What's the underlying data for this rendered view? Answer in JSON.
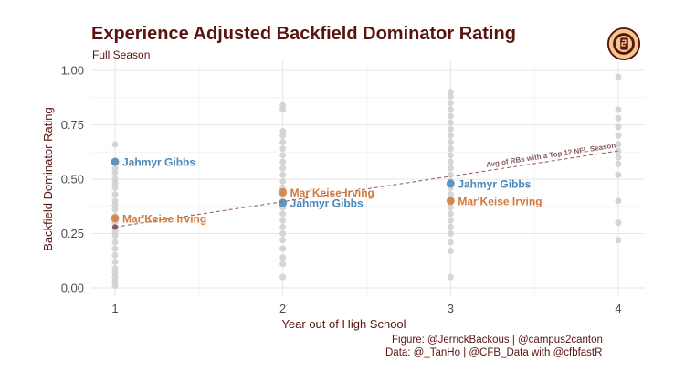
{
  "header": {
    "title": "Experience Adjusted Backfield Dominator Rating",
    "subtitle": "Full Season"
  },
  "credits": {
    "line1": "Figure: @JerrickBackous | @campus2canton",
    "line2": "Data: @_TanHo | @CFB_Data with @cfbfastR"
  },
  "colors": {
    "title": "#5a1410",
    "gibbs": "#4a86b8",
    "irving": "#d27a3b",
    "background_points": "#cfcfcf",
    "trend": "#8a5a5a",
    "logo_fill": "#f2c98a",
    "logo_ring": "#5a1410"
  },
  "logo_icon": "campus2canton-logo-icon",
  "chart_data": {
    "type": "scatter",
    "xlabel": "Year out of High School",
    "ylabel": "Backfield Dominator Rating",
    "xlim": [
      1,
      4
    ],
    "ylim": [
      0,
      1
    ],
    "x_ticks": [
      "1",
      "2",
      "3",
      "4"
    ],
    "y_ticks": [
      "0.00",
      "0.25",
      "0.50",
      "0.75",
      "1.00"
    ],
    "grid": true,
    "background_points": [
      {
        "x": 1,
        "y": 0.66
      },
      {
        "x": 1,
        "y": 0.58
      },
      {
        "x": 1,
        "y": 0.55
      },
      {
        "x": 1,
        "y": 0.53
      },
      {
        "x": 1,
        "y": 0.5
      },
      {
        "x": 1,
        "y": 0.48
      },
      {
        "x": 1,
        "y": 0.46
      },
      {
        "x": 1,
        "y": 0.43
      },
      {
        "x": 1,
        "y": 0.4
      },
      {
        "x": 1,
        "y": 0.38
      },
      {
        "x": 1,
        "y": 0.36
      },
      {
        "x": 1,
        "y": 0.33
      },
      {
        "x": 1,
        "y": 0.3
      },
      {
        "x": 1,
        "y": 0.28
      },
      {
        "x": 1,
        "y": 0.26
      },
      {
        "x": 1,
        "y": 0.24
      },
      {
        "x": 1,
        "y": 0.21
      },
      {
        "x": 1,
        "y": 0.18
      },
      {
        "x": 1,
        "y": 0.15
      },
      {
        "x": 1,
        "y": 0.12
      },
      {
        "x": 1,
        "y": 0.09
      },
      {
        "x": 1,
        "y": 0.07
      },
      {
        "x": 1,
        "y": 0.05
      },
      {
        "x": 1,
        "y": 0.03
      },
      {
        "x": 1,
        "y": 0.01
      },
      {
        "x": 2,
        "y": 0.84
      },
      {
        "x": 2,
        "y": 0.82
      },
      {
        "x": 2,
        "y": 0.72
      },
      {
        "x": 2,
        "y": 0.7
      },
      {
        "x": 2,
        "y": 0.67
      },
      {
        "x": 2,
        "y": 0.64
      },
      {
        "x": 2,
        "y": 0.61
      },
      {
        "x": 2,
        "y": 0.58
      },
      {
        "x": 2,
        "y": 0.55
      },
      {
        "x": 2,
        "y": 0.52
      },
      {
        "x": 2,
        "y": 0.49
      },
      {
        "x": 2,
        "y": 0.46
      },
      {
        "x": 2,
        "y": 0.43
      },
      {
        "x": 2,
        "y": 0.4
      },
      {
        "x": 2,
        "y": 0.37
      },
      {
        "x": 2,
        "y": 0.34
      },
      {
        "x": 2,
        "y": 0.31
      },
      {
        "x": 2,
        "y": 0.28
      },
      {
        "x": 2,
        "y": 0.25
      },
      {
        "x": 2,
        "y": 0.22
      },
      {
        "x": 2,
        "y": 0.18
      },
      {
        "x": 2,
        "y": 0.14
      },
      {
        "x": 2,
        "y": 0.11
      },
      {
        "x": 2,
        "y": 0.05
      },
      {
        "x": 3,
        "y": 0.9
      },
      {
        "x": 3,
        "y": 0.88
      },
      {
        "x": 3,
        "y": 0.85
      },
      {
        "x": 3,
        "y": 0.82
      },
      {
        "x": 3,
        "y": 0.79
      },
      {
        "x": 3,
        "y": 0.76
      },
      {
        "x": 3,
        "y": 0.73
      },
      {
        "x": 3,
        "y": 0.7
      },
      {
        "x": 3,
        "y": 0.67
      },
      {
        "x": 3,
        "y": 0.64
      },
      {
        "x": 3,
        "y": 0.61
      },
      {
        "x": 3,
        "y": 0.58
      },
      {
        "x": 3,
        "y": 0.55
      },
      {
        "x": 3,
        "y": 0.52
      },
      {
        "x": 3,
        "y": 0.49
      },
      {
        "x": 3,
        "y": 0.46
      },
      {
        "x": 3,
        "y": 0.43
      },
      {
        "x": 3,
        "y": 0.4
      },
      {
        "x": 3,
        "y": 0.37
      },
      {
        "x": 3,
        "y": 0.34
      },
      {
        "x": 3,
        "y": 0.31
      },
      {
        "x": 3,
        "y": 0.28
      },
      {
        "x": 3,
        "y": 0.25
      },
      {
        "x": 3,
        "y": 0.21
      },
      {
        "x": 3,
        "y": 0.17
      },
      {
        "x": 3,
        "y": 0.05
      },
      {
        "x": 4,
        "y": 0.97
      },
      {
        "x": 4,
        "y": 0.82
      },
      {
        "x": 4,
        "y": 0.78
      },
      {
        "x": 4,
        "y": 0.74
      },
      {
        "x": 4,
        "y": 0.7
      },
      {
        "x": 4,
        "y": 0.66
      },
      {
        "x": 4,
        "y": 0.63
      },
      {
        "x": 4,
        "y": 0.6
      },
      {
        "x": 4,
        "y": 0.57
      },
      {
        "x": 4,
        "y": 0.52
      },
      {
        "x": 4,
        "y": 0.4
      },
      {
        "x": 4,
        "y": 0.3
      },
      {
        "x": 4,
        "y": 0.22
      }
    ],
    "series": [
      {
        "name": "Jahmyr Gibbs",
        "color": "#4a86b8",
        "points": [
          {
            "x": 1,
            "y": 0.58
          },
          {
            "x": 2,
            "y": 0.39
          },
          {
            "x": 3,
            "y": 0.48
          }
        ]
      },
      {
        "name": "Mar'Keise Irving",
        "color": "#d27a3b",
        "points": [
          {
            "x": 1,
            "y": 0.32
          },
          {
            "x": 2,
            "y": 0.44
          },
          {
            "x": 3,
            "y": 0.4
          }
        ]
      }
    ],
    "trend_line": {
      "label": "Avg of RBs with a Top 12 NFL Season",
      "x": [
        1,
        4
      ],
      "y": [
        0.28,
        0.63
      ]
    },
    "extra_points": [
      {
        "x": 1,
        "y": 0.28,
        "color": "#8a5a5a"
      }
    ]
  }
}
